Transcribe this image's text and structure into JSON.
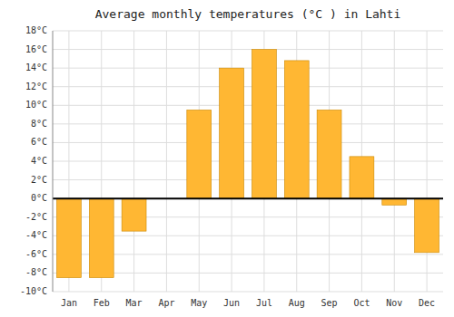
{
  "chart_data": {
    "type": "bar",
    "title": "Average monthly temperatures (°C ) in Lahti",
    "categories": [
      "Jan",
      "Feb",
      "Mar",
      "Apr",
      "May",
      "Jun",
      "Jul",
      "Aug",
      "Sep",
      "Oct",
      "Nov",
      "Dec"
    ],
    "values": [
      -8.5,
      -8.5,
      -3.5,
      0,
      9.5,
      14.0,
      16.0,
      14.8,
      9.5,
      4.5,
      -0.7,
      -5.8
    ],
    "color": "#FFB733",
    "ylim": [
      -10,
      18
    ],
    "yticks": [
      {
        "value": -10,
        "label": "-10°C"
      },
      {
        "value": -8,
        "label": "-8°C"
      },
      {
        "value": -6,
        "label": "-6°C"
      },
      {
        "value": -4,
        "label": "-4°C"
      },
      {
        "value": -2,
        "label": "-2°C"
      },
      {
        "value": 0,
        "label": "0°C"
      },
      {
        "value": 2,
        "label": "2°C"
      },
      {
        "value": 4,
        "label": "4°C"
      },
      {
        "value": 6,
        "label": "6°C"
      },
      {
        "value": 8,
        "label": "8°C"
      },
      {
        "value": 10,
        "label": "10°C"
      },
      {
        "value": 12,
        "label": "12°C"
      },
      {
        "value": 14,
        "label": "14°C"
      },
      {
        "value": 16,
        "label": "16°C"
      },
      {
        "value": 18,
        "label": "18°C"
      }
    ],
    "grid": true
  }
}
